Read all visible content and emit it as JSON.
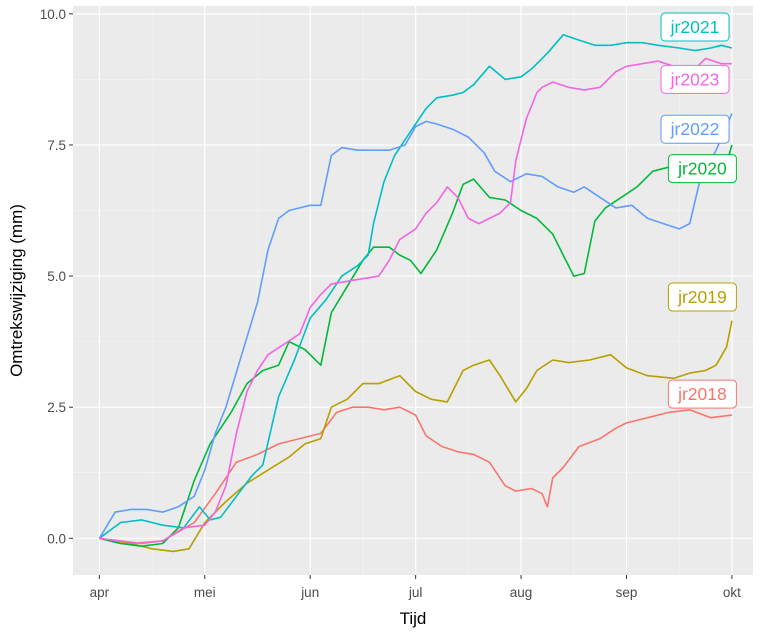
{
  "chart_data": {
    "type": "line",
    "xlabel": "Tijd",
    "ylabel": "Omtrekswijziging (mm)",
    "x_unit": "month (fractional, Apr 1 = 4.0)",
    "xlim": [
      3.75,
      10.2
    ],
    "ylim": [
      -0.7,
      10.15
    ],
    "x_ticks": [
      {
        "value": 4,
        "label": "apr"
      },
      {
        "value": 5,
        "label": "mei"
      },
      {
        "value": 6,
        "label": "jun"
      },
      {
        "value": 7,
        "label": "jul"
      },
      {
        "value": 8,
        "label": "aug"
      },
      {
        "value": 9,
        "label": "sep"
      },
      {
        "value": 10,
        "label": "okt"
      }
    ],
    "y_ticks": [
      {
        "value": 0.0,
        "label": "0.0"
      },
      {
        "value": 2.5,
        "label": "2.5"
      },
      {
        "value": 5.0,
        "label": "5.0"
      },
      {
        "value": 7.5,
        "label": "7.5"
      },
      {
        "value": 10.0,
        "label": "10.0"
      }
    ],
    "grid": true,
    "legend": "direct labels at line ends",
    "series": [
      {
        "name": "jr2018",
        "color": "#F8766D",
        "x": [
          4.0,
          4.3,
          4.6,
          4.9,
          5.1,
          5.3,
          5.5,
          5.7,
          5.9,
          6.1,
          6.25,
          6.4,
          6.55,
          6.7,
          6.85,
          7.0,
          7.1,
          7.25,
          7.4,
          7.55,
          7.7,
          7.85,
          7.95,
          8.1,
          8.2,
          8.25,
          8.3,
          8.4,
          8.55,
          8.75,
          8.9,
          9.0,
          9.2,
          9.4,
          9.6,
          9.8,
          10.0
        ],
        "y": [
          0.0,
          -0.1,
          -0.05,
          0.3,
          0.85,
          1.45,
          1.6,
          1.8,
          1.9,
          2.0,
          2.4,
          2.5,
          2.5,
          2.45,
          2.5,
          2.35,
          1.95,
          1.75,
          1.65,
          1.6,
          1.45,
          1.0,
          0.9,
          0.95,
          0.85,
          0.6,
          1.15,
          1.35,
          1.75,
          1.9,
          2.1,
          2.2,
          2.3,
          2.4,
          2.45,
          2.3,
          2.35
        ]
      },
      {
        "name": "jr2019",
        "color": "#B79F00",
        "x": [
          4.0,
          4.3,
          4.5,
          4.7,
          4.85,
          5.0,
          5.2,
          5.4,
          5.6,
          5.8,
          5.95,
          6.1,
          6.2,
          6.35,
          6.5,
          6.65,
          6.85,
          7.0,
          7.15,
          7.3,
          7.45,
          7.55,
          7.7,
          7.8,
          7.95,
          8.05,
          8.15,
          8.3,
          8.45,
          8.65,
          8.85,
          9.0,
          9.2,
          9.45,
          9.6,
          9.75,
          9.85,
          9.95,
          10.0
        ],
        "y": [
          0.0,
          -0.1,
          -0.2,
          -0.25,
          -0.2,
          0.3,
          0.7,
          1.05,
          1.3,
          1.55,
          1.8,
          1.9,
          2.5,
          2.65,
          2.95,
          2.95,
          3.1,
          2.8,
          2.65,
          2.6,
          3.2,
          3.3,
          3.4,
          3.1,
          2.6,
          2.85,
          3.2,
          3.4,
          3.35,
          3.4,
          3.5,
          3.25,
          3.1,
          3.05,
          3.15,
          3.2,
          3.3,
          3.65,
          4.15
        ]
      },
      {
        "name": "jr2020",
        "color": "#00BA38",
        "x": [
          4.0,
          4.2,
          4.4,
          4.6,
          4.75,
          4.9,
          5.05,
          5.15,
          5.25,
          5.4,
          5.55,
          5.7,
          5.8,
          5.95,
          6.1,
          6.2,
          6.35,
          6.5,
          6.6,
          6.75,
          6.85,
          6.95,
          7.05,
          7.2,
          7.35,
          7.45,
          7.55,
          7.7,
          7.85,
          8.0,
          8.15,
          8.3,
          8.4,
          8.5,
          8.6,
          8.7,
          8.8,
          8.95,
          9.1,
          9.25,
          9.45,
          9.6,
          9.75,
          9.9,
          10.0
        ],
        "y": [
          0.0,
          -0.1,
          -0.15,
          -0.1,
          0.2,
          1.1,
          1.8,
          2.1,
          2.4,
          2.95,
          3.2,
          3.3,
          3.75,
          3.6,
          3.3,
          4.3,
          4.8,
          5.3,
          5.55,
          5.55,
          5.4,
          5.3,
          5.05,
          5.5,
          6.2,
          6.75,
          6.85,
          6.5,
          6.45,
          6.25,
          6.1,
          5.8,
          5.4,
          5.0,
          5.05,
          6.05,
          6.3,
          6.5,
          6.7,
          7.0,
          7.1,
          7.05,
          7.0,
          6.8,
          7.5
        ]
      },
      {
        "name": "jr2021",
        "color": "#00BFC4",
        "x": [
          4.0,
          4.2,
          4.4,
          4.6,
          4.8,
          4.95,
          5.05,
          5.15,
          5.3,
          5.45,
          5.55,
          5.7,
          5.85,
          6.0,
          6.15,
          6.3,
          6.45,
          6.55,
          6.6,
          6.7,
          6.8,
          6.9,
          7.0,
          7.1,
          7.2,
          7.35,
          7.45,
          7.55,
          7.7,
          7.85,
          8.0,
          8.1,
          8.25,
          8.4,
          8.55,
          8.7,
          8.85,
          9.0,
          9.15,
          9.3,
          9.5,
          9.65,
          9.8,
          9.9,
          10.0
        ],
        "y": [
          0.0,
          0.3,
          0.35,
          0.25,
          0.2,
          0.6,
          0.35,
          0.4,
          0.8,
          1.2,
          1.4,
          2.7,
          3.4,
          4.2,
          4.55,
          5.0,
          5.2,
          5.4,
          6.0,
          6.8,
          7.3,
          7.6,
          7.9,
          8.2,
          8.4,
          8.45,
          8.5,
          8.65,
          9.0,
          8.75,
          8.8,
          8.95,
          9.25,
          9.6,
          9.5,
          9.4,
          9.4,
          9.45,
          9.45,
          9.4,
          9.35,
          9.3,
          9.35,
          9.4,
          9.35
        ]
      },
      {
        "name": "jr2022",
        "color": "#619CFF",
        "x": [
          4.0,
          4.15,
          4.3,
          4.45,
          4.6,
          4.75,
          4.9,
          5.0,
          5.1,
          5.2,
          5.35,
          5.5,
          5.6,
          5.7,
          5.8,
          5.9,
          6.0,
          6.1,
          6.2,
          6.3,
          6.45,
          6.6,
          6.75,
          6.9,
          7.0,
          7.1,
          7.2,
          7.35,
          7.5,
          7.65,
          7.75,
          7.9,
          8.05,
          8.2,
          8.35,
          8.5,
          8.6,
          8.75,
          8.9,
          9.05,
          9.2,
          9.35,
          9.5,
          9.6,
          9.7,
          9.85,
          10.0
        ],
        "y": [
          0.0,
          0.5,
          0.55,
          0.55,
          0.5,
          0.6,
          0.8,
          1.3,
          2.0,
          2.5,
          3.5,
          4.5,
          5.5,
          6.1,
          6.25,
          6.3,
          6.35,
          6.35,
          7.3,
          7.45,
          7.4,
          7.4,
          7.4,
          7.5,
          7.85,
          7.95,
          7.9,
          7.8,
          7.65,
          7.35,
          7.0,
          6.8,
          6.95,
          6.9,
          6.7,
          6.6,
          6.7,
          6.5,
          6.3,
          6.35,
          6.1,
          6.0,
          5.9,
          6.0,
          6.85,
          7.4,
          8.1
        ]
      },
      {
        "name": "jr2023",
        "color": "#F564E3",
        "x": [
          4.0,
          4.2,
          4.4,
          4.6,
          4.8,
          5.0,
          5.1,
          5.2,
          5.3,
          5.4,
          5.5,
          5.6,
          5.75,
          5.9,
          6.0,
          6.1,
          6.2,
          6.35,
          6.5,
          6.65,
          6.75,
          6.85,
          7.0,
          7.1,
          7.2,
          7.3,
          7.4,
          7.5,
          7.6,
          7.7,
          7.8,
          7.9,
          7.95,
          8.05,
          8.15,
          8.2,
          8.3,
          8.45,
          8.6,
          8.75,
          8.9,
          9.0,
          9.15,
          9.3,
          9.45,
          9.6,
          9.75,
          9.9,
          10.0
        ],
        "y": [
          0.0,
          -0.05,
          -0.1,
          -0.05,
          0.2,
          0.25,
          0.5,
          1.0,
          2.0,
          2.8,
          3.2,
          3.5,
          3.7,
          3.9,
          4.4,
          4.65,
          4.85,
          4.9,
          4.95,
          5.0,
          5.3,
          5.7,
          5.9,
          6.2,
          6.4,
          6.7,
          6.5,
          6.1,
          6.0,
          6.1,
          6.2,
          6.4,
          7.2,
          8.0,
          8.5,
          8.6,
          8.7,
          8.6,
          8.55,
          8.6,
          8.9,
          9.0,
          9.05,
          9.1,
          9.0,
          8.85,
          9.15,
          9.05,
          9.05
        ]
      }
    ],
    "labels": [
      {
        "text": "jr2021",
        "series": "jr2021",
        "x": 9.65,
        "y": 9.75
      },
      {
        "text": "jr2023",
        "series": "jr2023",
        "x": 9.65,
        "y": 8.75
      },
      {
        "text": "jr2022",
        "series": "jr2022",
        "x": 9.65,
        "y": 7.8
      },
      {
        "text": "jr2020",
        "series": "jr2020",
        "x": 9.72,
        "y": 7.05
      },
      {
        "text": "jr2019",
        "series": "jr2019",
        "x": 9.72,
        "y": 4.6
      },
      {
        "text": "jr2018",
        "series": "jr2018",
        "x": 9.72,
        "y": 2.75
      }
    ]
  }
}
